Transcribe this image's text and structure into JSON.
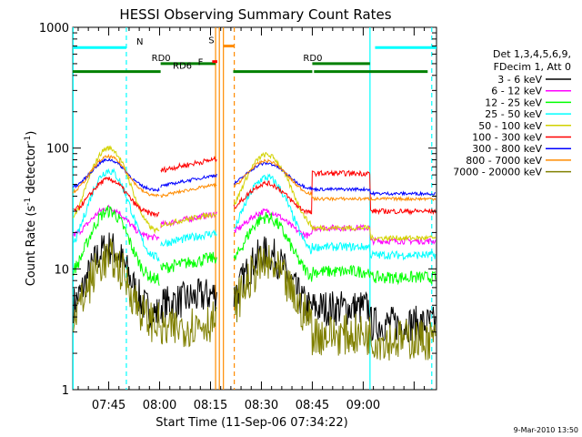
{
  "chart_data": {
    "type": "line",
    "title": "HESSI Observing Summary Count Rates",
    "xlabel": "Start Time (11-Sep-06 07:34:22)",
    "ylabel": "Count Rate (s",
    "ylabel_sup1": "-1",
    "ylabel_mid": " detector",
    "ylabel_sup2": "-1",
    "ylabel_end": ")",
    "y_scale": "log",
    "ylim": [
      1,
      1000
    ],
    "xlim": [
      454.4,
      561.6
    ],
    "x_ticks": [
      {
        "t": 465,
        "label": "07:45"
      },
      {
        "t": 480,
        "label": "08:00"
      },
      {
        "t": 495,
        "label": "08:15"
      },
      {
        "t": 510,
        "label": "08:30"
      },
      {
        "t": 525,
        "label": "08:45"
      },
      {
        "t": 540,
        "label": "09:00"
      }
    ],
    "y_ticks": [
      {
        "v": 1,
        "label": "1"
      },
      {
        "v": 10,
        "label": "10"
      },
      {
        "v": 100,
        "label": "100"
      },
      {
        "v": 1000,
        "label": "1000"
      }
    ],
    "legend_header": [
      "Det 1,3,4,5,6,9,",
      "FDecim 1, Att 0"
    ],
    "series": [
      {
        "name": "3 - 6 keV",
        "color": "#000000",
        "base": 4.2,
        "peak": 15,
        "mid": 5,
        "end": 3.5,
        "noise": 0.35
      },
      {
        "name": "6 - 12 keV",
        "color": "#ff00ff",
        "base": 18,
        "peak": 32,
        "mid": 23,
        "end": 17,
        "noise": 0.06
      },
      {
        "name": "12 - 25 keV",
        "color": "#00ff00",
        "base": 8,
        "peak": 30,
        "mid": 10,
        "end": 8.5,
        "noise": 0.12
      },
      {
        "name": "25 - 50 keV",
        "color": "#00ffff",
        "base": 12,
        "peak": 65,
        "mid": 16,
        "end": 13,
        "noise": 0.08
      },
      {
        "name": "50 - 100 keV",
        "color": "#d2d200",
        "base": 20,
        "peak": 100,
        "mid": 23,
        "end": 18,
        "noise": 0.05
      },
      {
        "name": "100 - 300 keV",
        "color": "#ff0000",
        "base": 28,
        "peak": 55,
        "mid": 65,
        "end": 30,
        "noise": 0.05
      },
      {
        "name": "300 - 800 keV",
        "color": "#0000ff",
        "base": 45,
        "peak": 80,
        "mid": 48,
        "end": 42,
        "noise": 0.03
      },
      {
        "name": "800 - 7000 keV",
        "color": "#ff8c00",
        "base": 40,
        "peak": 85,
        "mid": 40,
        "end": 38,
        "noise": 0.03
      },
      {
        "name": "7000 - 20000 keV",
        "color": "#808000",
        "base": 3.5,
        "peak": 12,
        "mid": 3.0,
        "end": 2.6,
        "noise": 0.4
      }
    ],
    "flags": [
      {
        "label": "N",
        "color": "#00ffff",
        "level": 680,
        "segments": [
          [
            454.4,
            470.2
          ],
          [
            543.5,
            561.6
          ]
        ]
      },
      {
        "label": "RD0",
        "color": "#008000",
        "level": 500,
        "segments": [
          [
            480.3,
            496.5
          ]
        ]
      },
      {
        "label": "RD6",
        "color": "#008000",
        "level": 430,
        "segments": [
          [
            454.4,
            480.3
          ],
          [
            501.7,
            525
          ],
          [
            525.5,
            559
          ]
        ]
      },
      {
        "label": "RD0",
        "color": "#008000",
        "level": 500,
        "segments": [
          [
            525,
            542
          ]
        ]
      },
      {
        "label": "S",
        "color": "#ff8c00",
        "level": 700,
        "segments": [
          [
            498.8,
            502.0
          ]
        ]
      },
      {
        "label": "F",
        "color": "#ff0000",
        "level": 520,
        "segments": [
          [
            495.5,
            497.0
          ]
        ]
      }
    ],
    "vertical_markers": [
      {
        "t": 454.5,
        "color": "#00ffff",
        "style": "solid"
      },
      {
        "t": 470.2,
        "color": "#00ffff",
        "style": "dashed"
      },
      {
        "t": 496.5,
        "color": "#ff8c00",
        "style": "solid"
      },
      {
        "t": 497.6,
        "color": "#ff8c00",
        "style": "solid"
      },
      {
        "t": 498.8,
        "color": "#ff8c00",
        "style": "solid"
      },
      {
        "t": 502.0,
        "color": "#ff8c00",
        "style": "dashed"
      },
      {
        "t": 542.0,
        "color": "#00ffff",
        "style": "solid"
      },
      {
        "t": 560.2,
        "color": "#00ffff",
        "style": "dashed"
      }
    ]
  },
  "footer": {
    "timestamp": "9-Mar-2010 13:50"
  }
}
